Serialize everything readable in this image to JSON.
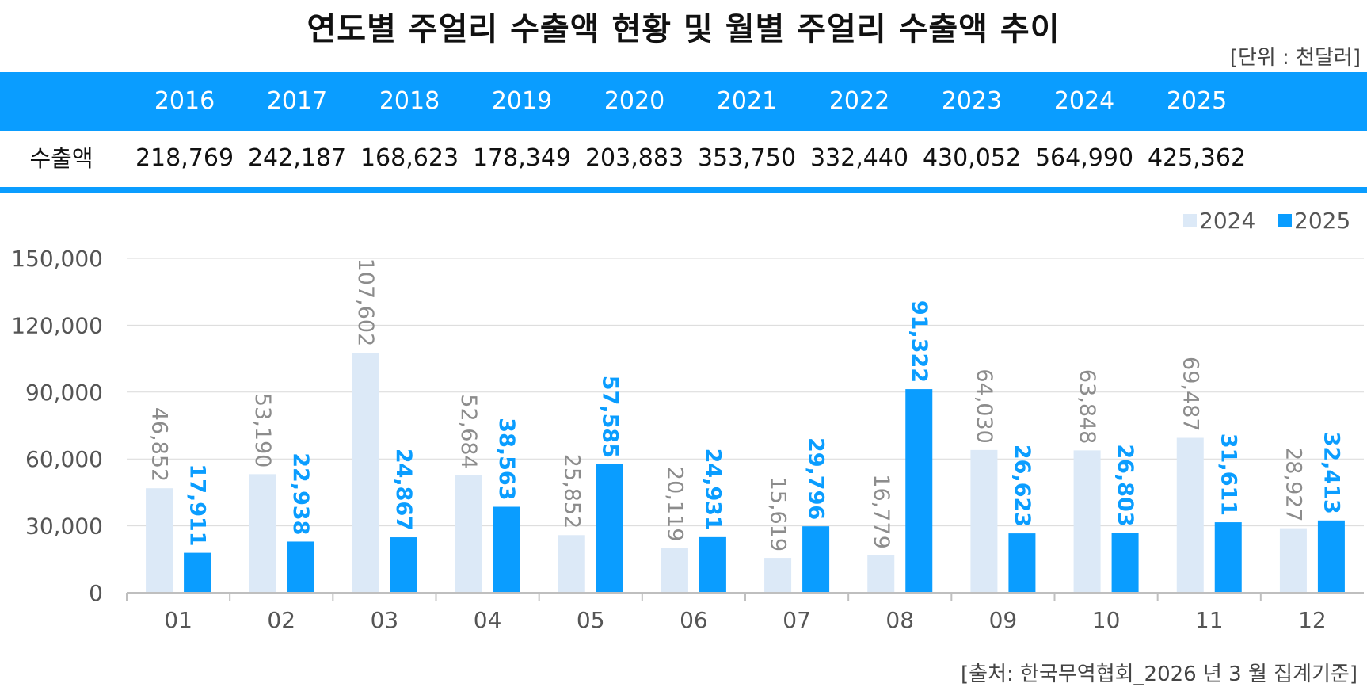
{
  "title": "연도별 주얼리 수출액 현황 및 월별 주얼리 수출액 추이",
  "unit": "[단위 : 천달러]",
  "annual_table": {
    "row_label": "수출액",
    "years": [
      "2016",
      "2017",
      "2018",
      "2019",
      "2020",
      "2021",
      "2022",
      "2023",
      "2024",
      "2025"
    ],
    "values": [
      "218,769",
      "242,187",
      "168,623",
      "178,349",
      "203,883",
      "353,750",
      "332,440",
      "430,052",
      "564,990",
      "425,362"
    ]
  },
  "source": "[출처: 한국무역협회_2026 년 3 월 집계기준]",
  "colors": {
    "header_blue": "#0a9dff",
    "series_2024": "#dce9f7",
    "series_2025": "#0a9dff",
    "label_2024": "#8c8c8c",
    "label_2025": "#0a9dff"
  },
  "chart_data": {
    "type": "bar",
    "categories": [
      "01",
      "02",
      "03",
      "04",
      "05",
      "06",
      "07",
      "08",
      "09",
      "10",
      "11",
      "12"
    ],
    "series": [
      {
        "name": "2024",
        "values": [
          46852,
          53190,
          107602,
          52684,
          25852,
          20119,
          15619,
          16779,
          64030,
          63848,
          69487,
          28927
        ],
        "labels": [
          "46,852",
          "53,190",
          "107,602",
          "52,684",
          "25,852",
          "20,119",
          "15,619",
          "16,779",
          "64,030",
          "63,848",
          "69,487",
          "28,927"
        ]
      },
      {
        "name": "2025",
        "values": [
          17911,
          22938,
          24867,
          38563,
          57585,
          24931,
          29796,
          91322,
          26623,
          26803,
          31611,
          32413
        ],
        "labels": [
          "17,911",
          "22,938",
          "24,867",
          "38,563",
          "57,585",
          "24,931",
          "29,796",
          "91,322",
          "26,623",
          "26,803",
          "31,611",
          "32,413"
        ]
      }
    ],
    "yticks": [
      0,
      30000,
      60000,
      90000,
      120000,
      150000
    ],
    "ytick_labels": [
      "0",
      "30,000",
      "60,000",
      "90,000",
      "120,000",
      "150,000"
    ],
    "ylim": [
      0,
      150000
    ],
    "grid": true,
    "legend": "top-right"
  }
}
